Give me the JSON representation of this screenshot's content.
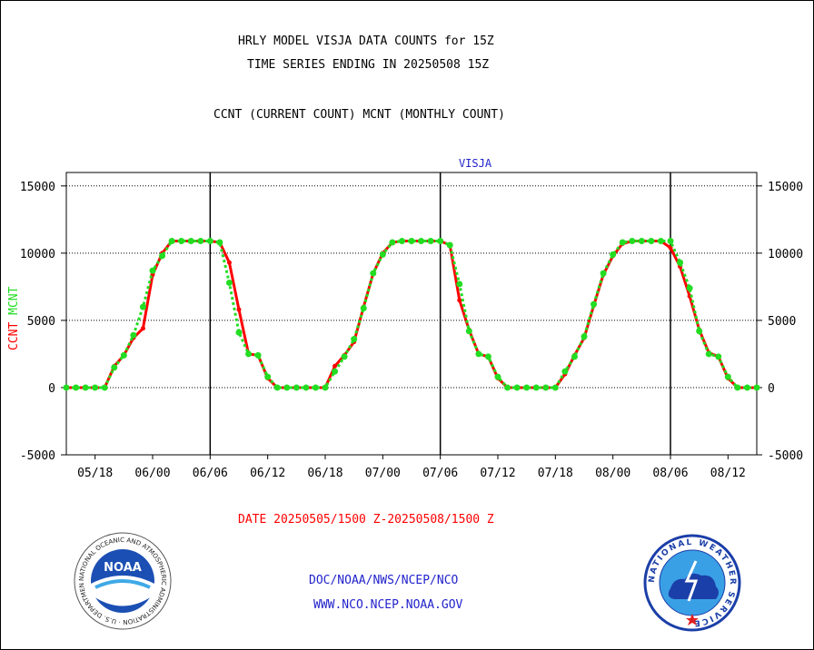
{
  "header": {
    "title_line1": "HRLY MODEL VISJA DATA COUNTS for 15Z",
    "title_line2": "TIME SERIES ENDING IN 20250508 15Z",
    "subtitle": "CCNT (CURRENT COUNT) MCNT (MONTHLY COUNT)"
  },
  "footer": {
    "date_range": "DATE 20250505/1500 Z-20250508/1500 Z",
    "org_path": "DOC/NOAA/NWS/NCEP/NCO",
    "website": "WWW.NCO.NCEP.NOAA.GOV"
  },
  "logos": {
    "noaa_text": "NOAA",
    "noaa_ring": "NATIONAL OCEANIC AND ATMOSPHERIC ADMINISTRATION · U.S. DEPARTMENT OF COMMERCE",
    "nws_ring": "NATIONAL WEATHER SERVICE"
  },
  "colors": {
    "ccnt": "#ff0000",
    "mcnt": "#22dd22",
    "date_text": "#ff0000",
    "footer_text": "#2222cc",
    "panel_label": "#2222cc"
  },
  "chart_data": {
    "type": "line",
    "title": "VISJA",
    "ylabel_left": [
      "CCNT",
      "MCNT"
    ],
    "ylim": [
      -5000,
      16000
    ],
    "yticks": [
      -5000,
      0,
      5000,
      10000,
      15000
    ],
    "ytick_labels": [
      "-5000",
      "0",
      "5000",
      "10000",
      "15000"
    ],
    "xticks": [
      "05/18",
      "06/00",
      "06/06",
      "06/12",
      "06/18",
      "07/00",
      "07/06",
      "07/12",
      "07/18",
      "08/00",
      "08/06",
      "08/12"
    ],
    "xlim_hours": [
      -3,
      69
    ],
    "day_boundaries_hours": [
      12,
      36,
      60
    ],
    "grid": "horizontal dotted",
    "series": [
      {
        "name": "CCNT",
        "x": [
          -3,
          -2,
          -1,
          0,
          1,
          2,
          3,
          4,
          5,
          6,
          7,
          8,
          9,
          10,
          11,
          12,
          13,
          14,
          15,
          16,
          17,
          18,
          19,
          20,
          21,
          22,
          23,
          24,
          25,
          26,
          27,
          28,
          29,
          30,
          31,
          32,
          33,
          34,
          35,
          36,
          37,
          38,
          39,
          40,
          41,
          42,
          43,
          44,
          45,
          46,
          47,
          48,
          49,
          50,
          51,
          52,
          53,
          54,
          55,
          56,
          57,
          58,
          59,
          60,
          61,
          62,
          63,
          64,
          65,
          66,
          67,
          68,
          69
        ],
        "values": [
          0,
          0,
          0,
          0,
          0,
          1600,
          2400,
          3700,
          4400,
          8400,
          10000,
          10900,
          10900,
          10900,
          10900,
          10900,
          10800,
          9300,
          5800,
          2500,
          2400,
          700,
          0,
          0,
          0,
          0,
          0,
          0,
          1600,
          2400,
          3400,
          6000,
          8500,
          10000,
          10800,
          10900,
          10900,
          10900,
          10900,
          10900,
          10600,
          6500,
          4300,
          2500,
          2300,
          700,
          0,
          0,
          0,
          0,
          0,
          0,
          1000,
          2400,
          3700,
          6100,
          8400,
          9800,
          10700,
          10900,
          10900,
          10900,
          10900,
          10400,
          9000,
          6800,
          4300,
          2600,
          2300,
          700,
          0,
          0,
          0
        ]
      },
      {
        "name": "MCNT",
        "x": [
          -3,
          -2,
          -1,
          0,
          1,
          2,
          3,
          4,
          5,
          6,
          7,
          8,
          9,
          10,
          11,
          12,
          13,
          14,
          15,
          16,
          17,
          18,
          19,
          20,
          21,
          22,
          23,
          24,
          25,
          26,
          27,
          28,
          29,
          30,
          31,
          32,
          33,
          34,
          35,
          36,
          37,
          38,
          39,
          40,
          41,
          42,
          43,
          44,
          45,
          46,
          47,
          48,
          49,
          50,
          51,
          52,
          53,
          54,
          55,
          56,
          57,
          58,
          59,
          60,
          61,
          62,
          63,
          64,
          65,
          66,
          67,
          68,
          69
        ],
        "values": [
          0,
          0,
          0,
          0,
          0,
          1500,
          2400,
          3900,
          6000,
          8700,
          9800,
          10900,
          10900,
          10900,
          10900,
          10900,
          10800,
          7800,
          4100,
          2500,
          2400,
          800,
          0,
          0,
          0,
          0,
          0,
          0,
          1200,
          2300,
          3600,
          5900,
          8500,
          9900,
          10800,
          10900,
          10900,
          10900,
          10900,
          10900,
          10600,
          7700,
          4200,
          2500,
          2300,
          800,
          0,
          0,
          0,
          0,
          0,
          0,
          1200,
          2300,
          3800,
          6200,
          8500,
          9900,
          10800,
          10900,
          10900,
          10900,
          10900,
          10900,
          9300,
          7400,
          4200,
          2500,
          2300,
          800,
          0,
          0,
          0
        ]
      }
    ]
  }
}
